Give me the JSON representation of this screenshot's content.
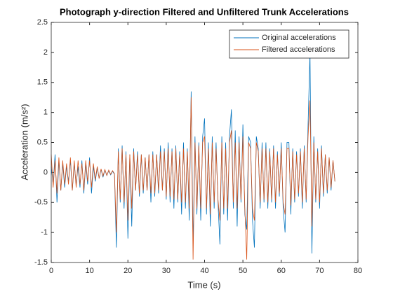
{
  "chart_data": {
    "type": "line",
    "title": "Photograph y-direction Filtered and Unfiltered Trunk Accelerations",
    "xlabel": "Time (s)",
    "ylabel": "Acceleration (m/s²)",
    "xlim": [
      0,
      80
    ],
    "xticks": [
      0,
      10,
      20,
      30,
      40,
      50,
      60,
      70,
      80
    ],
    "ylim": [
      -1.5,
      2.5
    ],
    "yticks": [
      -1.5,
      -1,
      -0.5,
      0,
      0.5,
      1,
      1.5,
      2,
      2.5
    ],
    "legend": "upper right",
    "grid": false,
    "x": [
      0,
      0.5,
      1,
      1.5,
      2,
      2.5,
      3,
      3.5,
      4,
      4.5,
      5,
      5.5,
      6,
      6.5,
      7,
      7.5,
      8,
      8.5,
      9,
      9.5,
      10,
      10.5,
      11,
      11.5,
      12,
      12.5,
      13,
      13.5,
      14,
      14.5,
      15,
      15.5,
      16,
      16.5,
      17,
      17.5,
      18,
      18.5,
      19,
      19.5,
      20,
      20.5,
      21,
      21.5,
      22,
      22.5,
      23,
      23.5,
      24,
      24.5,
      25,
      25.5,
      26,
      26.5,
      27,
      27.5,
      28,
      28.5,
      29,
      29.5,
      30,
      30.5,
      31,
      31.5,
      32,
      32.5,
      33,
      33.5,
      34,
      34.5,
      35,
      35.5,
      36,
      36.5,
      37,
      37.5,
      38,
      38.5,
      39,
      39.5,
      40,
      40.5,
      41,
      41.5,
      42,
      42.5,
      43,
      43.5,
      44,
      44.5,
      45,
      45.5,
      46,
      46.5,
      47,
      47.5,
      48,
      48.5,
      49,
      49.5,
      50,
      50.5,
      51,
      51.5,
      52,
      52.5,
      53,
      53.5,
      54,
      54.5,
      55,
      55.5,
      56,
      56.5,
      57,
      57.5,
      58,
      58.5,
      59,
      59.5,
      60,
      60.5,
      61,
      61.5,
      62,
      62.5,
      63,
      63.5,
      64,
      64.5,
      65,
      65.5,
      66,
      66.5,
      67,
      67.5,
      68,
      68.5,
      69,
      69.5,
      70,
      70.5,
      71,
      71.5,
      72,
      72.5,
      73,
      73.5,
      74
    ],
    "series": [
      {
        "name": "Original accelerations",
        "color": "#0072BD",
        "values": [
          0.1,
          -0.2,
          0.3,
          -0.5,
          0.2,
          -0.3,
          0.15,
          -0.25,
          0.1,
          -0.15,
          0.2,
          -0.3,
          0.15,
          -0.2,
          0.1,
          -0.25,
          0.2,
          -0.35,
          0.15,
          -0.2,
          0.25,
          -0.35,
          0.1,
          -0.15,
          0.08,
          -0.1,
          0.05,
          -0.08,
          0.04,
          -0.05,
          0.03,
          -0.04,
          0.02,
          -0.03,
          -1.25,
          0.4,
          -0.5,
          0.45,
          -0.6,
          0.35,
          -1.1,
          0.3,
          -0.9,
          0.4,
          -0.3,
          0.35,
          -0.4,
          0.3,
          -0.35,
          0.25,
          -0.3,
          0.3,
          -0.5,
          0.35,
          -0.4,
          0.3,
          -0.35,
          0.45,
          -0.3,
          0.4,
          -0.45,
          0.5,
          -0.5,
          0.4,
          -0.6,
          0.45,
          -0.5,
          0.35,
          -0.7,
          0.5,
          -0.6,
          0.4,
          -0.8,
          1.35,
          -1.2,
          0.6,
          -0.7,
          0.5,
          -0.8,
          0.6,
          0.9,
          -0.7,
          0.5,
          -0.9,
          0.6,
          -0.6,
          0.5,
          -0.5,
          -1.2,
          0.6,
          -0.7,
          0.5,
          -0.8,
          0.6,
          1.05,
          -0.6,
          0.7,
          -0.9,
          0.6,
          -0.5,
          0.8,
          -0.7,
          -0.95,
          0.6,
          0.5,
          -0.8,
          -1.25,
          0.6,
          0.4,
          -0.6,
          0.5,
          -0.5,
          0.5,
          -0.6,
          0.4,
          -0.5,
          0.45,
          -0.6,
          0.35,
          -0.4,
          0.5,
          -0.6,
          -1.0,
          0.5,
          0.5,
          -0.7,
          0.4,
          -0.5,
          0.35,
          -0.4,
          0.4,
          -0.6,
          0.45,
          -0.5,
          0.8,
          2.0,
          -1.35,
          0.6,
          -0.5,
          0.4,
          -0.6,
          0.45,
          -0.4,
          0.3,
          -0.35,
          0.25,
          -0.3,
          0.2,
          -0.15
        ]
      },
      {
        "name": "Filtered accelerations",
        "color": "#D95319",
        "values": [
          0.3,
          -0.25,
          0.2,
          -0.35,
          0.25,
          -0.3,
          0.2,
          -0.2,
          0.15,
          -0.2,
          0.25,
          -0.3,
          0.2,
          -0.25,
          0.2,
          -0.2,
          0.15,
          -0.3,
          0.2,
          -0.15,
          0.2,
          -0.25,
          0.15,
          -0.12,
          0.1,
          -0.1,
          0.06,
          -0.06,
          0.05,
          -0.05,
          0.04,
          -0.03,
          0.03,
          -0.02,
          -1.0,
          0.35,
          -0.45,
          0.4,
          -0.5,
          0.3,
          -0.8,
          0.3,
          -0.6,
          0.35,
          -0.3,
          0.3,
          -0.35,
          0.3,
          -0.3,
          0.25,
          -0.3,
          0.3,
          -0.35,
          0.3,
          -0.35,
          0.3,
          -0.3,
          0.35,
          -0.3,
          0.35,
          -0.4,
          0.4,
          -0.4,
          0.35,
          -0.45,
          0.4,
          -0.45,
          0.3,
          -0.5,
          0.4,
          -0.5,
          0.35,
          -0.6,
          1.25,
          -1.45,
          0.5,
          -0.6,
          0.45,
          -0.6,
          0.5,
          0.6,
          -0.6,
          0.4,
          -0.7,
          0.5,
          -0.5,
          0.4,
          -0.45,
          -0.8,
          0.5,
          -0.6,
          0.4,
          -0.6,
          0.5,
          0.7,
          -0.5,
          0.5,
          -0.6,
          0.5,
          -0.45,
          0.6,
          -0.6,
          -1.45,
          0.5,
          0.4,
          -0.6,
          -0.8,
          0.5,
          0.35,
          -0.5,
          0.4,
          -0.45,
          0.4,
          -0.5,
          0.35,
          -0.45,
          0.4,
          -0.5,
          0.3,
          -0.35,
          0.4,
          -0.5,
          -0.7,
          0.4,
          0.4,
          -0.55,
          0.35,
          -0.45,
          0.3,
          -0.35,
          0.35,
          -0.5,
          0.4,
          -0.45,
          0.6,
          1.2,
          -0.9,
          0.5,
          -0.45,
          0.35,
          -0.5,
          0.4,
          -0.35,
          0.3,
          -0.3,
          0.25,
          -0.25,
          0.2,
          -0.15
        ]
      }
    ]
  }
}
